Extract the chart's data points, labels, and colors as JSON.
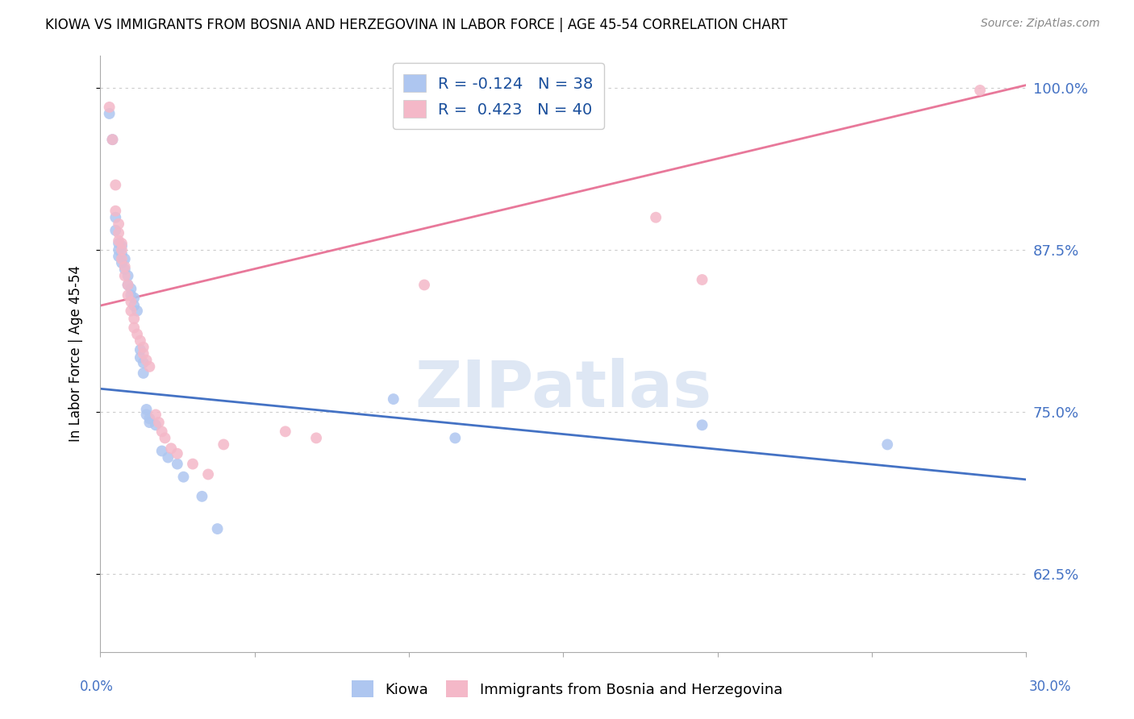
{
  "title": "KIOWA VS IMMIGRANTS FROM BOSNIA AND HERZEGOVINA IN LABOR FORCE | AGE 45-54 CORRELATION CHART",
  "source_text": "Source: ZipAtlas.com",
  "ylabel": "In Labor Force | Age 45-54",
  "ytick_labels": [
    "62.5%",
    "75.0%",
    "87.5%",
    "100.0%"
  ],
  "ytick_values": [
    0.625,
    0.75,
    0.875,
    1.0
  ],
  "xlim": [
    0.0,
    0.3
  ],
  "ylim": [
    0.565,
    1.025
  ],
  "dot_color_blue": "#aec6f0",
  "dot_color_pink": "#f4b8c8",
  "line_color_blue": "#4472c4",
  "line_color_pink": "#e8789a",
  "watermark_text": "ZIPatlas",
  "watermark_color": "#c8d8ee",
  "blue_dots": [
    [
      0.003,
      0.98
    ],
    [
      0.004,
      0.96
    ],
    [
      0.005,
      0.9
    ],
    [
      0.005,
      0.89
    ],
    [
      0.006,
      0.88
    ],
    [
      0.006,
      0.875
    ],
    [
      0.006,
      0.87
    ],
    [
      0.007,
      0.878
    ],
    [
      0.007,
      0.872
    ],
    [
      0.007,
      0.865
    ],
    [
      0.008,
      0.868
    ],
    [
      0.008,
      0.86
    ],
    [
      0.009,
      0.855
    ],
    [
      0.009,
      0.848
    ],
    [
      0.01,
      0.845
    ],
    [
      0.01,
      0.84
    ],
    [
      0.011,
      0.838
    ],
    [
      0.011,
      0.832
    ],
    [
      0.012,
      0.828
    ],
    [
      0.013,
      0.798
    ],
    [
      0.013,
      0.792
    ],
    [
      0.014,
      0.788
    ],
    [
      0.014,
      0.78
    ],
    [
      0.015,
      0.752
    ],
    [
      0.015,
      0.748
    ],
    [
      0.016,
      0.745
    ],
    [
      0.016,
      0.742
    ],
    [
      0.018,
      0.74
    ],
    [
      0.02,
      0.72
    ],
    [
      0.022,
      0.715
    ],
    [
      0.025,
      0.71
    ],
    [
      0.027,
      0.7
    ],
    [
      0.033,
      0.685
    ],
    [
      0.038,
      0.66
    ],
    [
      0.095,
      0.76
    ],
    [
      0.115,
      0.73
    ],
    [
      0.195,
      0.74
    ],
    [
      0.255,
      0.725
    ]
  ],
  "pink_dots": [
    [
      0.003,
      0.985
    ],
    [
      0.004,
      0.96
    ],
    [
      0.005,
      0.925
    ],
    [
      0.005,
      0.905
    ],
    [
      0.006,
      0.895
    ],
    [
      0.006,
      0.888
    ],
    [
      0.006,
      0.882
    ],
    [
      0.007,
      0.88
    ],
    [
      0.007,
      0.875
    ],
    [
      0.007,
      0.868
    ],
    [
      0.008,
      0.862
    ],
    [
      0.008,
      0.855
    ],
    [
      0.009,
      0.848
    ],
    [
      0.009,
      0.84
    ],
    [
      0.01,
      0.835
    ],
    [
      0.01,
      0.828
    ],
    [
      0.011,
      0.822
    ],
    [
      0.011,
      0.815
    ],
    [
      0.012,
      0.81
    ],
    [
      0.013,
      0.805
    ],
    [
      0.014,
      0.8
    ],
    [
      0.014,
      0.795
    ],
    [
      0.015,
      0.79
    ],
    [
      0.016,
      0.785
    ],
    [
      0.018,
      0.748
    ],
    [
      0.019,
      0.742
    ],
    [
      0.02,
      0.735
    ],
    [
      0.021,
      0.73
    ],
    [
      0.023,
      0.722
    ],
    [
      0.025,
      0.718
    ],
    [
      0.03,
      0.71
    ],
    [
      0.035,
      0.702
    ],
    [
      0.04,
      0.725
    ],
    [
      0.06,
      0.735
    ],
    [
      0.07,
      0.73
    ],
    [
      0.105,
      0.848
    ],
    [
      0.18,
      0.9
    ],
    [
      0.195,
      0.852
    ],
    [
      0.285,
      0.998
    ]
  ],
  "blue_line_x": [
    0.0,
    0.3
  ],
  "blue_line_y": [
    0.768,
    0.698
  ],
  "pink_line_x": [
    0.0,
    0.3
  ],
  "pink_line_y": [
    0.832,
    1.002
  ],
  "legend_label1": "Kiowa",
  "legend_label2": "Immigrants from Bosnia and Herzegovina",
  "legend_color1": "#aec6f0",
  "legend_color2": "#f4b8c8"
}
